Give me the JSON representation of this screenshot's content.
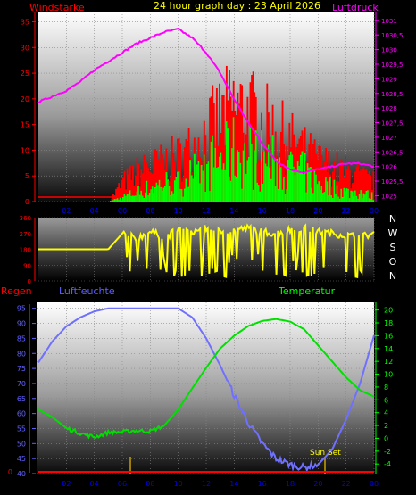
{
  "header": {
    "left_label": "Windstärke",
    "title": "24 hour graph day : 23 April 2026",
    "right_label": "Luftdruck"
  },
  "x_ticks": [
    "02",
    "04",
    "06",
    "08",
    "10",
    "12",
    "14",
    "16",
    "18",
    "20",
    "22",
    "00"
  ],
  "dir_letters": [
    "N",
    "W",
    "S",
    "O",
    "N"
  ],
  "bottom_header": {
    "left": "Regen",
    "mid": "Luftfeuchte",
    "right": "Temperatur"
  },
  "annotations": {
    "sunset": "Sun Set"
  },
  "colors": {
    "wind_gust": "#ff0000",
    "wind_avg": "#00ff00",
    "pressure": "#ff00ff",
    "direction": "#ffff00",
    "humidity": "#7070ff",
    "temperature": "#00e000",
    "rain": "#ff0000",
    "title": "#ffff00",
    "axis_red": "#ff0000",
    "axis_magenta": "#ff00ff",
    "axis_blue": "#6060ff",
    "axis_green": "#00ff00",
    "marker": "#c8a000"
  },
  "chart_data": [
    {
      "type": "bar",
      "title": "24 hour graph day : 23 April 2026",
      "ylabel": "Windstärke",
      "y2label": "Luftdruck",
      "ylim": [
        0,
        37
      ],
      "yticks": [
        0,
        5,
        10,
        15,
        20,
        25,
        30,
        35
      ],
      "y2lim": [
        1024.8,
        1031.3
      ],
      "y2ticks": [
        "1025",
        "1025,5",
        "1026",
        "1026,5",
        "1027",
        "1027,5",
        "1028",
        "1028,5",
        "1029",
        "1029,5",
        "1030",
        "1030,5",
        "1031"
      ],
      "x_hours": [
        0,
        1,
        2,
        3,
        4,
        5,
        6,
        7,
        8,
        9,
        10,
        11,
        12,
        13,
        14,
        15,
        16,
        17,
        18,
        19,
        20,
        21,
        22,
        23,
        24
      ],
      "series": [
        {
          "name": "Windstärke",
          "values": [
            0,
            0,
            0,
            0,
            0,
            0,
            4,
            6,
            7,
            8,
            9,
            11,
            14,
            17,
            19,
            18,
            16,
            14,
            12,
            10,
            8,
            7,
            6,
            5,
            4
          ]
        },
        {
          "values": [
            0,
            0,
            0,
            0,
            0,
            0,
            1,
            2,
            3,
            4,
            4,
            6,
            8,
            9,
            11,
            10,
            9,
            8,
            7,
            6,
            4,
            3,
            2,
            2,
            1
          ]
        },
        {
          "name": "Luftdruck",
          "values": [
            1028.2,
            1028.4,
            1028.6,
            1028.9,
            1029.3,
            1029.6,
            1029.9,
            1030.2,
            1030.4,
            1030.6,
            1030.7,
            1030.4,
            1029.9,
            1029.2,
            1028.3,
            1027.5,
            1026.8,
            1026.2,
            1025.9,
            1025.8,
            1025.9,
            1026.0,
            1026.1,
            1026.1,
            1026.0
          ]
        }
      ]
    },
    {
      "type": "line",
      "ylim": [
        0,
        360
      ],
      "yticks": [
        0,
        90,
        180,
        270,
        360
      ],
      "x_hours": [
        0,
        1,
        2,
        3,
        4,
        5,
        6,
        7,
        8,
        9,
        10,
        11,
        12,
        13,
        14,
        15,
        16,
        17,
        18,
        19,
        20,
        21,
        22,
        23,
        24
      ],
      "series": [
        {
          "values": [
            180,
            180,
            180,
            180,
            180,
            180,
            270,
            240,
            280,
            250,
            290,
            280,
            300,
            280,
            290,
            300,
            280,
            270,
            290,
            300,
            280,
            270,
            260,
            250,
            270
          ]
        }
      ]
    },
    {
      "type": "line",
      "ylabel": "Luftfeuchte",
      "y2label": "Temperatur",
      "ylim": [
        40,
        97
      ],
      "yticks": [
        40,
        45,
        50,
        55,
        60,
        65,
        70,
        75,
        80,
        85,
        90,
        95
      ],
      "y2lim": [
        -5.5,
        21.2
      ],
      "y2ticks": [
        -4,
        -2,
        0,
        2,
        4,
        6,
        8,
        10,
        12,
        14,
        16,
        18,
        20
      ],
      "x_hours": [
        0,
        1,
        2,
        3,
        4,
        5,
        6,
        7,
        8,
        9,
        10,
        11,
        12,
        13,
        14,
        15,
        16,
        17,
        18,
        19,
        20,
        21,
        22,
        23,
        24
      ],
      "series": [
        {
          "name": "Luftfeuchte",
          "values": [
            77,
            84,
            89,
            92,
            94,
            95,
            95,
            95,
            95,
            95,
            95,
            92,
            85,
            76,
            66,
            57,
            50,
            45,
            43,
            42,
            43,
            48,
            58,
            70,
            86
          ]
        },
        {
          "name": "Temperatur",
          "values": [
            4.5,
            3.3,
            1.6,
            0.8,
            0.2,
            0.9,
            1.0,
            1.2,
            1.1,
            2.0,
            4.5,
            7.8,
            11,
            14,
            16,
            17.5,
            18.3,
            18.6,
            18.2,
            17,
            14.5,
            12,
            9.5,
            7.5,
            6.5
          ]
        },
        {
          "name": "Regen",
          "values": [
            0,
            0,
            0,
            0,
            0,
            0,
            0,
            0,
            0,
            0,
            0,
            0,
            0,
            0,
            0,
            0,
            0,
            0,
            0,
            0,
            0,
            0,
            0,
            0,
            0
          ]
        }
      ]
    }
  ]
}
